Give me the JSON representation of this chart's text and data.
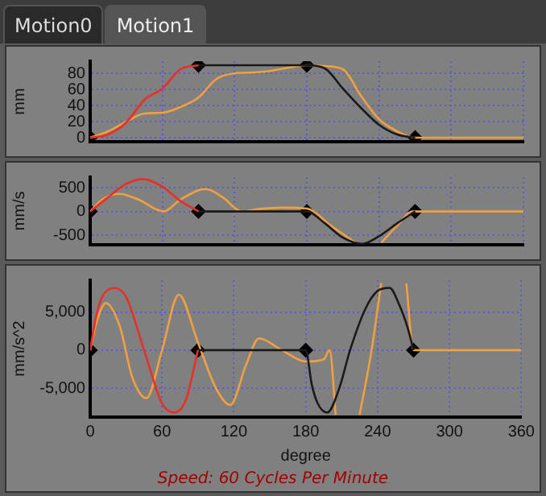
{
  "chart_data": [
    {
      "type": "line",
      "annotations": [
        "Motion0",
        "Motion1"
      ],
      "ylabel": "mm",
      "xlim": [
        0,
        360
      ],
      "xticks": [
        0,
        60,
        120,
        180,
        240,
        300,
        360
      ],
      "ylim": [
        -5,
        95
      ],
      "yticks": [
        0,
        20,
        40,
        60,
        80
      ],
      "grid": true,
      "legend": false,
      "tick_labels": "y",
      "series": [
        {
          "color": "#e8302a",
          "marker": "none",
          "x": [
            0,
            15,
            30,
            45,
            60,
            75,
            90
          ],
          "values": [
            0,
            4,
            19,
            47,
            61,
            85,
            90
          ]
        },
        {
          "color": "#1a1a1a",
          "marker": "none",
          "x": [
            90,
            180,
            195,
            210,
            225,
            240,
            255,
            270
          ],
          "values": [
            90,
            90,
            86,
            61,
            37,
            16,
            4,
            0
          ]
        },
        {
          "color": "#f0a040",
          "marker": "none",
          "x": [
            0,
            15,
            30,
            45,
            60,
            75,
            90,
            105,
            120,
            135,
            150,
            165,
            180,
            195,
            210,
            225,
            240,
            255,
            270,
            360
          ],
          "values": [
            0,
            8,
            20,
            30,
            31,
            38,
            50,
            73,
            80,
            81,
            83,
            87,
            90,
            89,
            85,
            52,
            23,
            8,
            0,
            0
          ]
        },
        {
          "type": "scatter",
          "color": "#000000",
          "marker": "diamond",
          "x": [
            0,
            90,
            180,
            270
          ],
          "values": [
            0,
            90,
            90,
            0
          ]
        }
      ]
    },
    {
      "type": "line",
      "ylabel": "mm/s",
      "xlim": [
        0,
        360
      ],
      "xticks": [
        0,
        60,
        120,
        180,
        240,
        300,
        360
      ],
      "ylim": [
        -700,
        720
      ],
      "yticks": [
        -500,
        0,
        500
      ],
      "grid": true,
      "legend": false,
      "tick_labels": "y",
      "series": [
        {
          "color": "#e8302a",
          "marker": "none",
          "x": [
            0,
            15,
            30,
            44,
            60,
            75,
            90
          ],
          "values": [
            0,
            300,
            580,
            680,
            520,
            220,
            0
          ]
        },
        {
          "color": "#1a1a1a",
          "marker": "none",
          "x": [
            90,
            180,
            195,
            210,
            226,
            240,
            255,
            270
          ],
          "values": [
            0,
            0,
            -250,
            -550,
            -680,
            -520,
            -250,
            0
          ]
        },
        {
          "color": "#f0a040",
          "marker": "none",
          "x": [
            0,
            10,
            24,
            40,
            61,
            75,
            96,
            110,
            126,
            140,
            160,
            180,
            200,
            220,
            225,
            235,
            242,
            255,
            268,
            270,
            360
          ],
          "values": [
            0,
            250,
            370,
            250,
            0,
            250,
            470,
            300,
            0,
            50,
            80,
            60,
            -300,
            -650,
            null,
            null,
            -650,
            -300,
            0,
            0,
            0
          ]
        },
        {
          "type": "scatter",
          "color": "#000000",
          "marker": "diamond",
          "x": [
            0,
            90,
            180,
            270
          ],
          "values": [
            0,
            0,
            0,
            0
          ]
        }
      ]
    },
    {
      "type": "line",
      "ylabel": "mm/s^2",
      "xlabel": "degree",
      "annotations": [
        "Speed: 60 Cycles Per Minute"
      ],
      "xlim": [
        0,
        360
      ],
      "xticks": [
        0,
        60,
        120,
        180,
        240,
        300,
        360
      ],
      "ylim": [
        -8800,
        9200
      ],
      "yticks": [
        {
          "value": -5000,
          "label": "-5,000"
        },
        0,
        {
          "value": 5000,
          "label": "5,000"
        }
      ],
      "grid": true,
      "legend": false,
      "series": [
        {
          "color": "#e8302a",
          "marker": "none",
          "x": [
            0,
            5,
            10,
            20,
            30,
            45,
            60,
            70,
            80,
            90
          ],
          "values": [
            0,
            4500,
            7000,
            8200,
            7000,
            0,
            -7000,
            -8200,
            -6500,
            0
          ]
        },
        {
          "color": "#1a1a1a",
          "marker": "none",
          "x": [
            90,
            180,
            185,
            190,
            198,
            208,
            217,
            230,
            240,
            250,
            258,
            265,
            270
          ],
          "values": [
            0,
            0,
            -4500,
            -7000,
            -8200,
            -5000,
            0,
            5500,
            7800,
            8200,
            6000,
            3000,
            0
          ]
        },
        {
          "color": "#f0a040",
          "marker": "none",
          "x": [
            0,
            5,
            13,
            25,
            35,
            47,
            60,
            74,
            90,
            105,
            117,
            130,
            141,
            160,
            180,
            195,
            200,
            205,
            210,
            222,
            225,
            235,
            243,
            250,
            260,
            264,
            270,
            360
          ],
          "values": [
            0,
            3500,
            6200,
            3000,
            -3500,
            -6300,
            0,
            7300,
            1000,
            -5000,
            -7200,
            -2000,
            1550,
            0,
            -1500,
            -1200,
            0,
            -8500,
            null,
            null,
            -8500,
            0,
            8800,
            null,
            null,
            8800,
            0,
            0
          ]
        },
        {
          "type": "scatter",
          "color": "#000000",
          "marker": "diamond",
          "x": [
            0,
            90,
            180,
            270
          ],
          "values": [
            0,
            0,
            0,
            0
          ]
        }
      ]
    }
  ]
}
